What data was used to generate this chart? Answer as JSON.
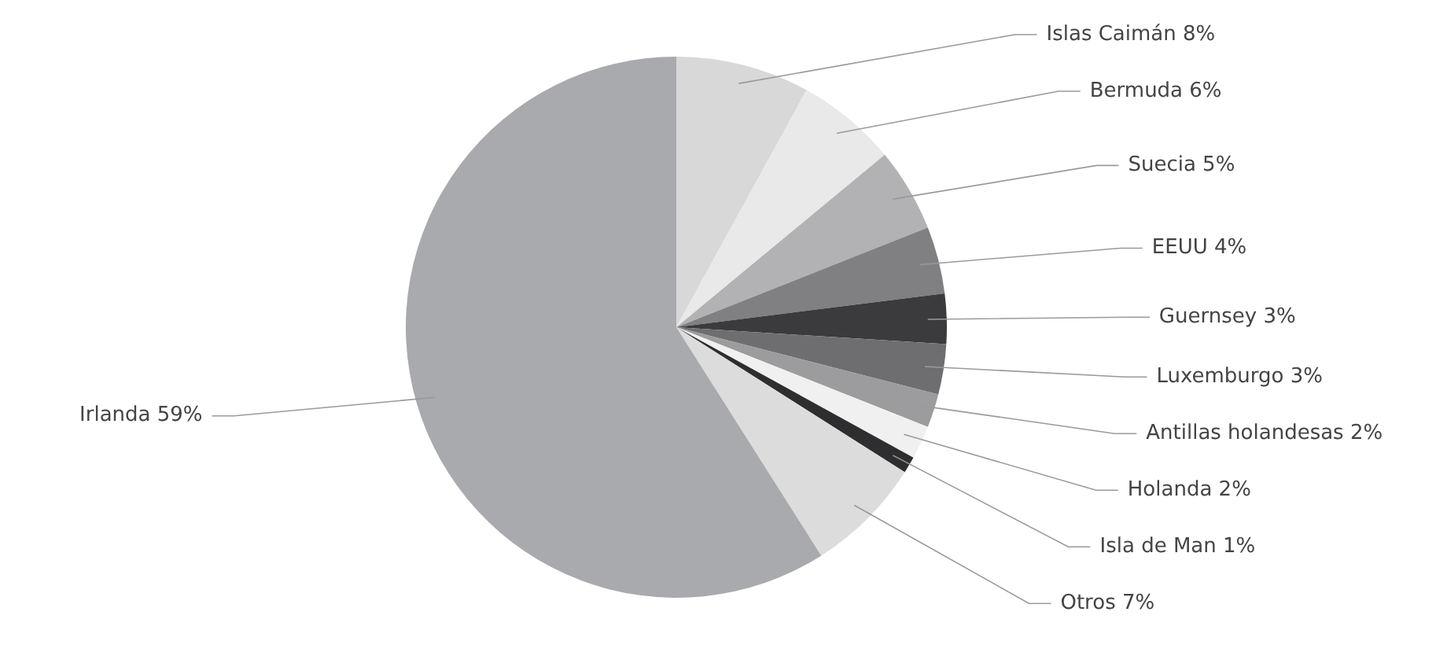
{
  "chart_data": {
    "type": "pie",
    "categories": [
      "Islas Caimán",
      "Bermuda",
      "Suecia",
      "EEUU",
      "Guernsey",
      "Luxemburgo",
      "Antillas holandesas",
      "Holanda",
      "Isla de Man",
      "Otros",
      "Irlanda"
    ],
    "values": [
      8,
      6,
      5,
      4,
      3,
      3,
      2,
      2,
      1,
      7,
      59
    ],
    "colors": [
      "#d8d8d9",
      "#e9e9ea",
      "#b2b2b4",
      "#808083",
      "#3b3b3d",
      "#6e6e71",
      "#9c9c9e",
      "#f0f0f0",
      "#2e2e30",
      "#dcdcdd",
      "#a9aaad"
    ],
    "value_labels": [
      "8%",
      "6%",
      "5%",
      "4%",
      "3%",
      "3%",
      "2%",
      "2%",
      "1%",
      "7%",
      "59%"
    ],
    "legend": false
  }
}
